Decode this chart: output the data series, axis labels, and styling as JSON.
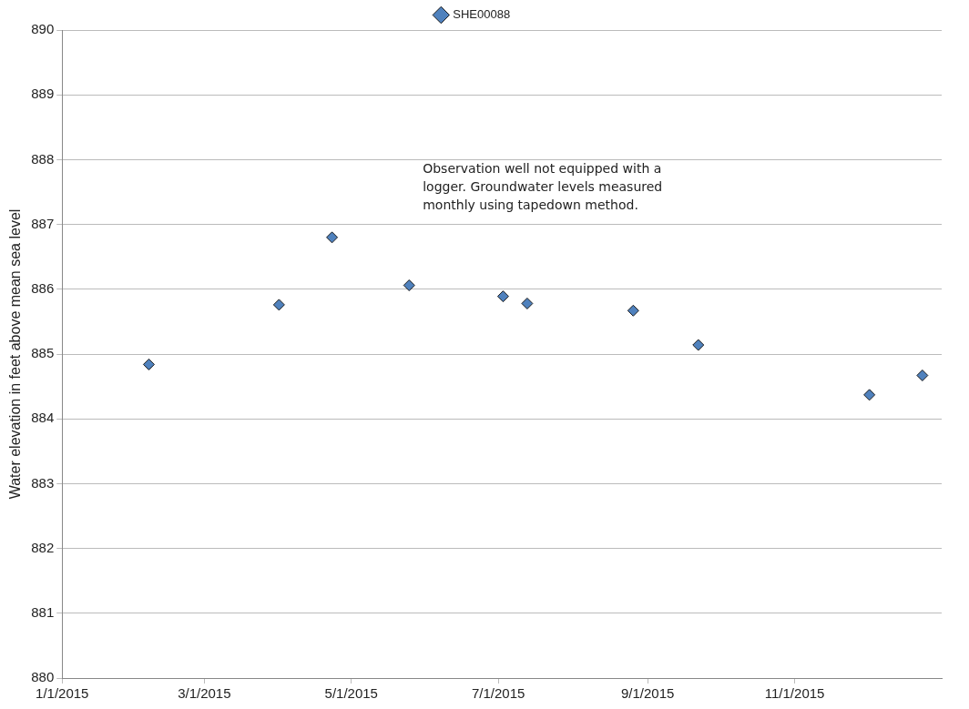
{
  "chart_data": {
    "type": "scatter",
    "ylabel": "Water elevation in feet above mean sea level",
    "x": [
      "2015-02-06",
      "2015-04-01",
      "2015-04-23",
      "2015-05-25",
      "2015-07-03",
      "2015-07-13",
      "2015-08-26",
      "2015-09-22",
      "2015-12-02",
      "2015-12-24"
    ],
    "series": [
      {
        "name": "SHE00088",
        "color": "#4f81bd",
        "values": [
          884.84,
          885.76,
          886.8,
          886.06,
          885.89,
          885.78,
          885.67,
          885.14,
          884.37,
          884.67
        ]
      }
    ],
    "xlim": [
      "2015-01-01",
      "2016-01-01"
    ],
    "xticks": [
      {
        "value": "2015-01-01",
        "label": "1/1/2015"
      },
      {
        "value": "2015-03-01",
        "label": "3/1/2015"
      },
      {
        "value": "2015-05-01",
        "label": "5/1/2015"
      },
      {
        "value": "2015-07-01",
        "label": "7/1/2015"
      },
      {
        "value": "2015-09-01",
        "label": "9/1/2015"
      },
      {
        "value": "2015-11-01",
        "label": "11/1/2015"
      }
    ],
    "ylim": [
      880,
      890
    ],
    "yticks": [
      880,
      881,
      882,
      883,
      884,
      885,
      886,
      887,
      888,
      889,
      890
    ],
    "annotations": [
      "Observation well not equipped with a logger. Groundwater levels measured monthly using tapedown method."
    ],
    "grid": "y",
    "legend": "top",
    "marker": "diamond"
  }
}
